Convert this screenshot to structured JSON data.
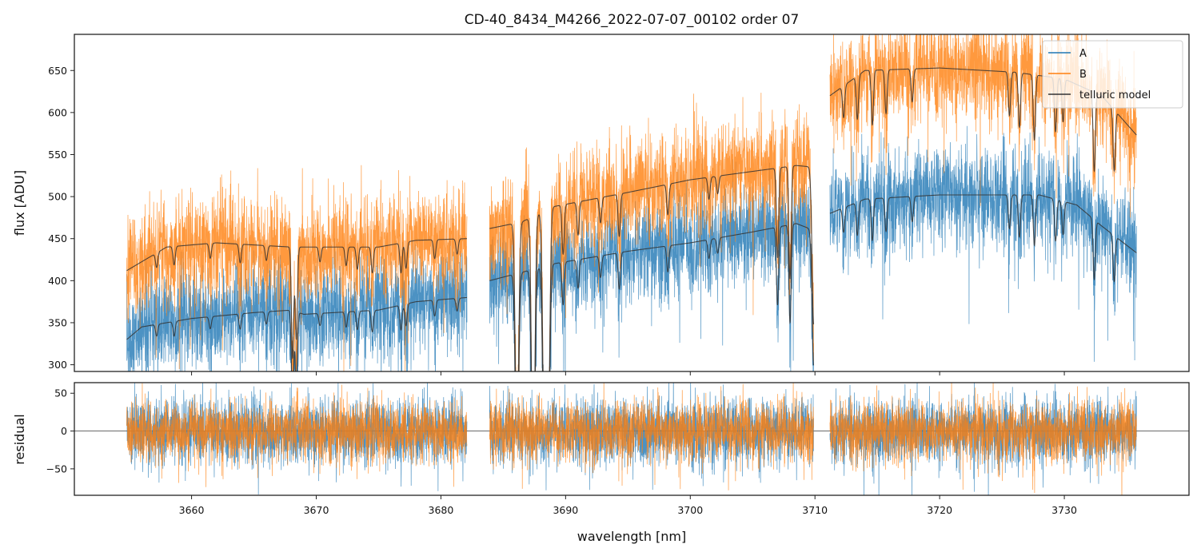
{
  "chart_data": [
    {
      "type": "line",
      "panel": "spectrum",
      "title": "CD-40_8434_M4266_2022-07-07_00102  order 07",
      "xlabel": "",
      "ylabel": "flux [ADU]",
      "xlim": [
        3650.6,
        3740.0
      ],
      "ylim": [
        292,
        693
      ],
      "xticks": [
        3660,
        3670,
        3680,
        3690,
        3700,
        3710,
        3720,
        3730
      ],
      "yticks": [
        300,
        350,
        400,
        450,
        500,
        550,
        600,
        650
      ],
      "ytick_labels": [
        "300",
        "350",
        "400",
        "450",
        "500",
        "550",
        "600",
        "650"
      ],
      "grid": false,
      "legend": {
        "placement": "top-right",
        "entries": [
          "A",
          "B",
          "telluric model"
        ]
      },
      "segments": [
        [
          3654.8,
          3682.1
        ],
        [
          3683.9,
          3709.9
        ],
        [
          3711.2,
          3735.8
        ]
      ],
      "series": [
        {
          "name": "A",
          "color": "#1f77b4",
          "noise_sigma": 28,
          "continuum": [
            [
              3654.8,
              330
            ],
            [
              3656,
              345
            ],
            [
              3660,
              355
            ],
            [
              3665,
              362
            ],
            [
              3668,
              365
            ],
            [
              3669,
              360
            ],
            [
              3675,
              365
            ],
            [
              3678,
              375
            ],
            [
              3682.1,
              380
            ],
            [
              3683.9,
              400
            ],
            [
              3686.5,
              410
            ],
            [
              3689,
              420
            ],
            [
              3695,
              435
            ],
            [
              3700,
              445
            ],
            [
              3705,
              458
            ],
            [
              3708.5,
              468
            ],
            [
              3709.9,
              460
            ],
            [
              3711.2,
              480
            ],
            [
              3714,
              497
            ],
            [
              3720,
              502
            ],
            [
              3728,
              502
            ],
            [
              3731,
              490
            ],
            [
              3733,
              465
            ],
            [
              3735.8,
              433
            ]
          ]
        },
        {
          "name": "B",
          "color": "#ff7f0e",
          "noise_sigma": 30,
          "continuum": [
            [
              3654.8,
              412
            ],
            [
              3658,
              440
            ],
            [
              3662,
              445
            ],
            [
              3668,
              440
            ],
            [
              3675,
              440
            ],
            [
              3678,
              448
            ],
            [
              3682.1,
              450
            ],
            [
              3683.9,
              462
            ],
            [
              3686.5,
              470
            ],
            [
              3689,
              488
            ],
            [
              3695,
              505
            ],
            [
              3700,
              520
            ],
            [
              3705,
              530
            ],
            [
              3708.5,
              537
            ],
            [
              3709.9,
              535
            ],
            [
              3711.2,
              620
            ],
            [
              3714,
              650
            ],
            [
              3720,
              653
            ],
            [
              3726,
              648
            ],
            [
              3730,
              640
            ],
            [
              3733,
              620
            ],
            [
              3735.8,
              573
            ]
          ]
        },
        {
          "name": "telluric model",
          "color": "#333333",
          "absorption_lines_nm": [
            3657.2,
            3658.6,
            3661.5,
            3663.9,
            3666.0,
            3668.1,
            3668.4,
            3670.3,
            3672.4,
            3673.3,
            3674.5,
            3676.8,
            3677.2,
            3679.5,
            3681.3,
            3686.1,
            3687.4,
            3688.3,
            3688.6,
            3689.8,
            3691.0,
            3692.8,
            3694.3,
            3698.2,
            3701.5,
            3702.2,
            3707.0,
            3708.0,
            3709.9,
            3712.3,
            3713.4,
            3714.6,
            3715.7,
            3717.8,
            3725.6,
            3726.4,
            3727.6,
            3729.3,
            3729.9,
            3732.4,
            3734.0
          ],
          "absorption_depths": [
            0.04,
            0.05,
            0.04,
            0.05,
            0.04,
            0.3,
            0.25,
            0.04,
            0.05,
            0.06,
            0.07,
            0.08,
            0.07,
            0.05,
            0.04,
            0.6,
            0.7,
            0.6,
            0.55,
            0.12,
            0.08,
            0.06,
            0.1,
            0.07,
            0.05,
            0.04,
            0.2,
            0.25,
            0.35,
            0.06,
            0.08,
            0.1,
            0.08,
            0.06,
            0.08,
            0.1,
            0.12,
            0.1,
            0.08,
            0.15,
            0.12
          ]
        }
      ]
    },
    {
      "type": "line",
      "panel": "residual",
      "xlabel": "wavelength [nm]",
      "ylabel": "residual",
      "xlim": [
        3650.6,
        3740.0
      ],
      "ylim": [
        -85,
        64
      ],
      "xticks": [
        3660,
        3670,
        3680,
        3690,
        3700,
        3710,
        3720,
        3730
      ],
      "xtick_labels": [
        "3660",
        "3670",
        "3680",
        "3690",
        "3700",
        "3710",
        "3720",
        "3730"
      ],
      "yticks": [
        -50,
        0,
        50
      ],
      "ytick_labels": [
        "−50",
        "0",
        "50"
      ],
      "zero_line": 0,
      "series": [
        {
          "name": "A",
          "color": "#1f77b4",
          "noise_sigma": 22
        },
        {
          "name": "B",
          "color": "#ff7f0e",
          "noise_sigma": 20
        }
      ]
    }
  ]
}
